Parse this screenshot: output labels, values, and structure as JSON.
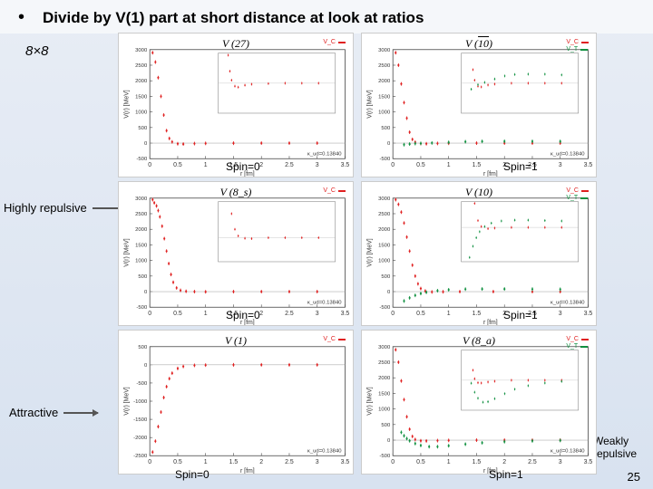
{
  "header": {
    "bullet": "•",
    "title": "Divide by V(1) part at short distance at look at ratios"
  },
  "matrixLabel": "8×8",
  "annotations": {
    "highlyRepulsive": "Highly repulsive",
    "attractive": "Attractive",
    "weaklyRepulsive": "Weakly repulsive"
  },
  "pageNumber": "25",
  "colors": {
    "vc": "#e02020",
    "vt": "#109040",
    "axis": "#444",
    "grid": "#e8e8e8",
    "insetBorder": "#888"
  },
  "xDomain": [
    0,
    3.5
  ],
  "panels": [
    {
      "title": "V (27)",
      "spinLabel": "Spin=0",
      "spinPos": [
        118,
        140
      ],
      "legend": [
        "V_C"
      ],
      "ylim": [
        -500,
        3000
      ],
      "ystep": 500,
      "kappa": "κ_ud=0.13840",
      "series": [
        {
          "color": "vc",
          "pts": [
            [
              0.05,
              2900
            ],
            [
              0.1,
              2600
            ],
            [
              0.15,
              2100
            ],
            [
              0.2,
              1500
            ],
            [
              0.25,
              900
            ],
            [
              0.3,
              400
            ],
            [
              0.35,
              150
            ],
            [
              0.4,
              40
            ],
            [
              0.5,
              -20
            ],
            [
              0.6,
              -30
            ],
            [
              0.8,
              -15
            ],
            [
              1.0,
              -8
            ],
            [
              1.5,
              -3
            ],
            [
              2.0,
              0
            ],
            [
              2.5,
              0
            ],
            [
              3.0,
              0
            ]
          ]
        }
      ],
      "inset": {
        "ylim": [
          -300,
          300
        ],
        "series": [
          {
            "color": "vc",
            "pts": [
              [
                0.3,
                280
              ],
              [
                0.35,
                120
              ],
              [
                0.4,
                30
              ],
              [
                0.5,
                -30
              ],
              [
                0.6,
                -40
              ],
              [
                0.8,
                -20
              ],
              [
                1.0,
                -10
              ],
              [
                1.5,
                -4
              ],
              [
                2.0,
                0
              ],
              [
                2.5,
                0
              ],
              [
                3.0,
                0
              ]
            ]
          }
        ]
      }
    },
    {
      "title": "V (10̄)",
      "titleOverline": "10",
      "spinLabel": "Spin=1",
      "spinPos": [
        156,
        140
      ],
      "legend": [
        "V_C",
        "V_T"
      ],
      "ylim": [
        -500,
        3000
      ],
      "ystep": 500,
      "kappa": "κ_ud=0.13840",
      "series": [
        {
          "color": "vc",
          "pts": [
            [
              0.05,
              2900
            ],
            [
              0.1,
              2500
            ],
            [
              0.15,
              1900
            ],
            [
              0.2,
              1300
            ],
            [
              0.25,
              800
            ],
            [
              0.3,
              350
            ],
            [
              0.35,
              120
            ],
            [
              0.4,
              30
            ],
            [
              0.5,
              -15
            ],
            [
              0.6,
              -20
            ],
            [
              0.8,
              -10
            ],
            [
              1.0,
              -5
            ],
            [
              1.5,
              0
            ],
            [
              2.0,
              0
            ],
            [
              2.5,
              0
            ],
            [
              3.0,
              0
            ]
          ]
        },
        {
          "color": "vt",
          "pts": [
            [
              0.2,
              -50
            ],
            [
              0.3,
              -30
            ],
            [
              0.4,
              -15
            ],
            [
              0.5,
              -8
            ],
            [
              0.7,
              5
            ],
            [
              1.0,
              25
            ],
            [
              1.3,
              45
            ],
            [
              1.6,
              55
            ],
            [
              2.0,
              58
            ],
            [
              2.5,
              58
            ],
            [
              3.0,
              55
            ]
          ]
        }
      ],
      "inset": {
        "ylim": [
          -200,
          200
        ],
        "series": [
          {
            "color": "vc",
            "pts": [
              [
                0.35,
                90
              ],
              [
                0.4,
                20
              ],
              [
                0.5,
                -20
              ],
              [
                0.6,
                -25
              ],
              [
                0.8,
                -12
              ],
              [
                1.0,
                -6
              ],
              [
                1.5,
                0
              ],
              [
                2.0,
                0
              ],
              [
                2.5,
                0
              ],
              [
                3.0,
                0
              ]
            ]
          },
          {
            "color": "vt",
            "pts": [
              [
                0.3,
                -40
              ],
              [
                0.5,
                -10
              ],
              [
                0.7,
                5
              ],
              [
                1.0,
                28
              ],
              [
                1.3,
                48
              ],
              [
                1.6,
                58
              ],
              [
                2.0,
                60
              ],
              [
                2.5,
                60
              ],
              [
                3.0,
                55
              ]
            ]
          }
        ]
      }
    },
    {
      "title": "V (8_s)",
      "spinLabel": "Spin=0",
      "spinPos": [
        118,
        140
      ],
      "legend": [
        "V_C"
      ],
      "ylim": [
        -500,
        3000
      ],
      "ystep": 500,
      "kappa": "κ_ud=0.13840",
      "series": [
        {
          "color": "vc",
          "pts": [
            [
              0.05,
              2950
            ],
            [
              0.08,
              2850
            ],
            [
              0.12,
              2750
            ],
            [
              0.15,
              2600
            ],
            [
              0.18,
              2400
            ],
            [
              0.22,
              2100
            ],
            [
              0.26,
              1700
            ],
            [
              0.3,
              1300
            ],
            [
              0.34,
              900
            ],
            [
              0.38,
              550
            ],
            [
              0.42,
              300
            ],
            [
              0.48,
              120
            ],
            [
              0.55,
              40
            ],
            [
              0.65,
              10
            ],
            [
              0.8,
              0
            ],
            [
              1.0,
              -5
            ],
            [
              1.5,
              0
            ],
            [
              2.0,
              0
            ],
            [
              2.5,
              0
            ],
            [
              3.0,
              0
            ]
          ]
        }
      ],
      "inset": {
        "ylim": [
          -200,
          300
        ],
        "series": [
          {
            "color": "vc",
            "pts": [
              [
                0.4,
                200
              ],
              [
                0.5,
                70
              ],
              [
                0.6,
                15
              ],
              [
                0.8,
                -5
              ],
              [
                1.0,
                -8
              ],
              [
                1.5,
                0
              ],
              [
                2.0,
                0
              ],
              [
                2.5,
                0
              ],
              [
                3.0,
                0
              ]
            ]
          }
        ]
      }
    },
    {
      "title": "V (10)",
      "spinLabel": "Spin=1",
      "spinPos": [
        156,
        140
      ],
      "legend": [
        "V_C",
        "V_T"
      ],
      "ylim": [
        -500,
        3000
      ],
      "ystep": 500,
      "kappa": "κ_ud=0.13840",
      "series": [
        {
          "color": "vc",
          "pts": [
            [
              0.05,
              2950
            ],
            [
              0.1,
              2800
            ],
            [
              0.15,
              2550
            ],
            [
              0.2,
              2200
            ],
            [
              0.25,
              1750
            ],
            [
              0.3,
              1300
            ],
            [
              0.35,
              850
            ],
            [
              0.4,
              500
            ],
            [
              0.45,
              250
            ],
            [
              0.5,
              100
            ],
            [
              0.58,
              20
            ],
            [
              0.7,
              -10
            ],
            [
              0.9,
              -5
            ],
            [
              1.2,
              0
            ],
            [
              1.8,
              0
            ],
            [
              2.5,
              0
            ],
            [
              3.0,
              0
            ]
          ]
        },
        {
          "color": "vt",
          "pts": [
            [
              0.2,
              -300
            ],
            [
              0.3,
              -200
            ],
            [
              0.4,
              -120
            ],
            [
              0.5,
              -60
            ],
            [
              0.6,
              -20
            ],
            [
              0.8,
              30
            ],
            [
              1.0,
              60
            ],
            [
              1.3,
              80
            ],
            [
              1.6,
              85
            ],
            [
              2.0,
              85
            ],
            [
              2.5,
              80
            ],
            [
              3.0,
              75
            ]
          ]
        }
      ],
      "inset": {
        "ylim": [
          -400,
          300
        ],
        "series": [
          {
            "color": "vc",
            "pts": [
              [
                0.4,
                280
              ],
              [
                0.5,
                80
              ],
              [
                0.6,
                10
              ],
              [
                0.8,
                -15
              ],
              [
                1.0,
                -8
              ],
              [
                1.5,
                0
              ],
              [
                2.0,
                0
              ],
              [
                2.5,
                0
              ],
              [
                3.0,
                0
              ]
            ]
          },
          {
            "color": "vt",
            "pts": [
              [
                0.25,
                -350
              ],
              [
                0.35,
                -220
              ],
              [
                0.45,
                -120
              ],
              [
                0.55,
                -50
              ],
              [
                0.7,
                10
              ],
              [
                0.9,
                50
              ],
              [
                1.2,
                75
              ],
              [
                1.6,
                85
              ],
              [
                2.0,
                85
              ],
              [
                2.5,
                80
              ],
              [
                3.0,
                75
              ]
            ]
          }
        ]
      }
    },
    {
      "title": "V (1)",
      "spinLabel": "Spin=0",
      "spinPos": [
        62,
        152
      ],
      "legend": [
        "V_C"
      ],
      "ylim": [
        -2500,
        500
      ],
      "ystep": 500,
      "kappa": "κ_ud=0.13840",
      "series": [
        {
          "color": "vc",
          "pts": [
            [
              0.05,
              -2400
            ],
            [
              0.1,
              -2100
            ],
            [
              0.15,
              -1700
            ],
            [
              0.2,
              -1300
            ],
            [
              0.25,
              -900
            ],
            [
              0.3,
              -600
            ],
            [
              0.35,
              -380
            ],
            [
              0.4,
              -230
            ],
            [
              0.5,
              -100
            ],
            [
              0.6,
              -45
            ],
            [
              0.8,
              -15
            ],
            [
              1.0,
              -8
            ],
            [
              1.5,
              0
            ],
            [
              2.0,
              0
            ],
            [
              2.5,
              0
            ],
            [
              3.0,
              0
            ]
          ]
        }
      ],
      "inset": null
    },
    {
      "title": "V (8_a)",
      "spinLabel": "Spin=1",
      "spinPos": [
        140,
        152
      ],
      "legend": [
        "V_C",
        "V_T"
      ],
      "ylim": [
        -500,
        3000
      ],
      "ystep": 500,
      "kappa": "κ_ud=0.13840",
      "series": [
        {
          "color": "vc",
          "pts": [
            [
              0.05,
              2900
            ],
            [
              0.1,
              2500
            ],
            [
              0.15,
              1900
            ],
            [
              0.2,
              1300
            ],
            [
              0.25,
              750
            ],
            [
              0.3,
              350
            ],
            [
              0.35,
              120
            ],
            [
              0.4,
              20
            ],
            [
              0.5,
              -20
            ],
            [
              0.6,
              -25
            ],
            [
              0.8,
              -15
            ],
            [
              1.0,
              -8
            ],
            [
              1.5,
              0
            ],
            [
              2.0,
              0
            ],
            [
              2.5,
              0
            ],
            [
              3.0,
              0
            ]
          ]
        },
        {
          "color": "vt",
          "pts": [
            [
              0.15,
              250
            ],
            [
              0.2,
              140
            ],
            [
              0.25,
              50
            ],
            [
              0.3,
              -20
            ],
            [
              0.4,
              -110
            ],
            [
              0.5,
              -170
            ],
            [
              0.65,
              -210
            ],
            [
              0.8,
              -210
            ],
            [
              1.0,
              -180
            ],
            [
              1.3,
              -130
            ],
            [
              1.6,
              -85
            ],
            [
              2.0,
              -50
            ],
            [
              2.5,
              -25
            ],
            [
              3.0,
              -10
            ]
          ]
        }
      ],
      "inset": {
        "ylim": [
          -300,
          300
        ],
        "series": [
          {
            "color": "vc",
            "pts": [
              [
                0.35,
                100
              ],
              [
                0.4,
                15
              ],
              [
                0.5,
                -25
              ],
              [
                0.6,
                -28
              ],
              [
                0.8,
                -18
              ],
              [
                1.0,
                -10
              ],
              [
                1.5,
                0
              ],
              [
                2.0,
                0
              ],
              [
                2.5,
                0
              ],
              [
                3.0,
                0
              ]
            ]
          },
          {
            "color": "vt",
            "pts": [
              [
                0.3,
                -30
              ],
              [
                0.4,
                -120
              ],
              [
                0.5,
                -180
              ],
              [
                0.65,
                -220
              ],
              [
                0.8,
                -215
              ],
              [
                1.0,
                -185
              ],
              [
                1.3,
                -135
              ],
              [
                1.6,
                -90
              ],
              [
                2.0,
                -55
              ],
              [
                2.5,
                -28
              ],
              [
                3.0,
                -12
              ]
            ]
          }
        ]
      }
    }
  ]
}
